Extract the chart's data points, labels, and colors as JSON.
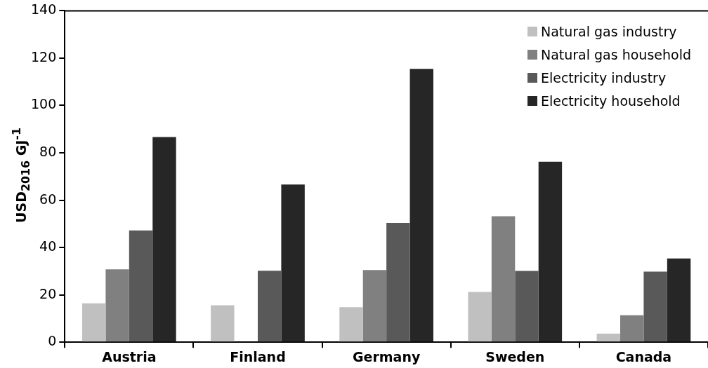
{
  "chart_data": {
    "type": "bar",
    "ylabel": "USD$_{2016}$ GJ$^{-1}$",
    "categories": [
      "Austria",
      "Finland",
      "Germany",
      "Sweden",
      "Canada"
    ],
    "series": [
      {
        "name": "Natural gas industry",
        "color": "#c0c0c0",
        "values": [
          16.4,
          15.6,
          14.8,
          21.2,
          3.6
        ]
      },
      {
        "name": "Natural gas household",
        "color": "#808080",
        "values": [
          30.8,
          null,
          30.5,
          53.2,
          11.4
        ]
      },
      {
        "name": "Electricity industry",
        "color": "#595959",
        "values": [
          47.2,
          30.2,
          50.4,
          30.1,
          29.8
        ]
      },
      {
        "name": "Electricity household",
        "color": "#262626",
        "values": [
          86.7,
          66.6,
          115.5,
          76.2,
          35.4
        ]
      }
    ],
    "ylim": [
      0,
      140
    ],
    "yticks": [
      0,
      20,
      40,
      60,
      80,
      100,
      120,
      140
    ],
    "grid": false,
    "legend": "top right"
  }
}
